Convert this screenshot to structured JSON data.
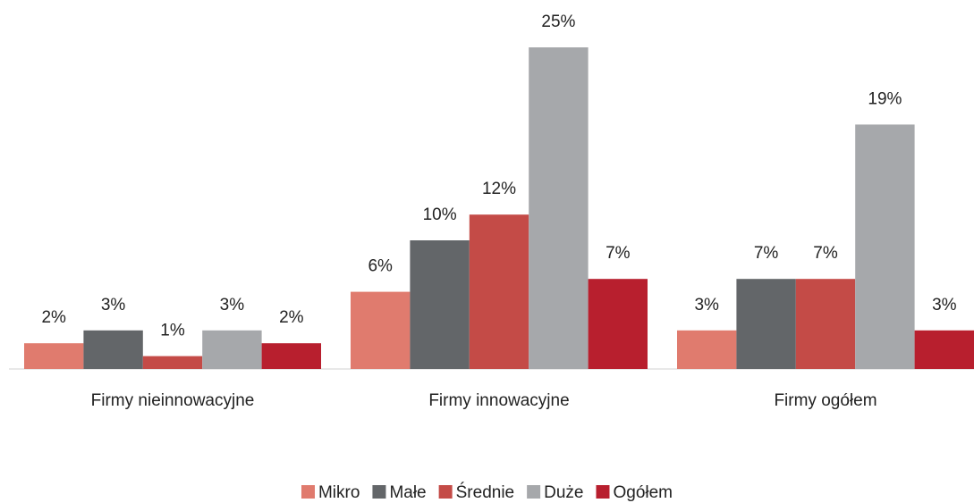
{
  "chart_data": {
    "type": "bar",
    "categories": [
      "Firmy nieinnowacyjne",
      "Firmy innowacyjne",
      "Firmy ogółem"
    ],
    "series": [
      {
        "name": "Mikro",
        "color": "#e07b6e",
        "values": [
          2,
          6,
          3
        ],
        "value_labels": [
          "2%",
          "6%",
          "3%"
        ]
      },
      {
        "name": "Małe",
        "color": "#636669",
        "values": [
          3,
          10,
          7
        ],
        "value_labels": [
          "3%",
          "10%",
          "7%"
        ]
      },
      {
        "name": "Średnie",
        "color": "#c44b47",
        "values": [
          1,
          12,
          7
        ],
        "value_labels": [
          "1%",
          "12%",
          "7%"
        ]
      },
      {
        "name": "Duże",
        "color": "#a6a8ab",
        "values": [
          3,
          25,
          19
        ],
        "value_labels": [
          "3%",
          "25%",
          "19%"
        ]
      },
      {
        "name": "Ogółem",
        "color": "#b81f2e",
        "values": [
          2,
          7,
          3
        ],
        "value_labels": [
          "2%",
          "7%",
          "3%"
        ]
      }
    ],
    "legend": "bottom"
  }
}
